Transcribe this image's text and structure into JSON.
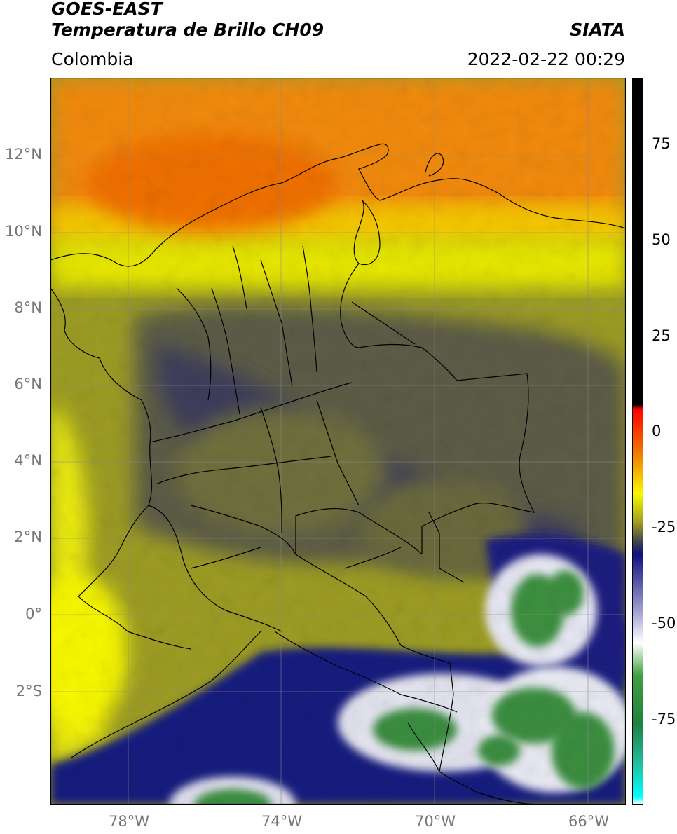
{
  "header": {
    "satellite": "GOES-EAST",
    "product": "Temperatura de Brillo CH09",
    "region": "Colombia",
    "brand": "SIATA",
    "timestamp": "2022-02-22 00:29"
  },
  "map": {
    "lat_labels": [
      "12°N",
      "10°N",
      "8°N",
      "6°N",
      "4°N",
      "2°N",
      "0°",
      "2°S"
    ],
    "lon_labels": [
      "78°W",
      "74°W",
      "70°W",
      "66°W"
    ],
    "gridlines": true,
    "colors": {
      "warm_orange": "#f28a0c",
      "yellow": "#f0f000",
      "olive": "#9a9a22",
      "gray_olive": "#565647",
      "navy": "#1a1a80",
      "white": "#ffffff",
      "green": "#3a9040",
      "border": "#000000"
    }
  },
  "colorbar": {
    "ticks": [
      "75",
      "50",
      "25",
      "0",
      "-25",
      "-50",
      "-75"
    ],
    "stops": [
      {
        "value": 90,
        "color": "#000000"
      },
      {
        "value": 9,
        "color": "#000000"
      },
      {
        "value": 8,
        "color": "#ff0000"
      },
      {
        "value": -3,
        "color": "#f07a00"
      },
      {
        "value": -13,
        "color": "#f8f800"
      },
      {
        "value": -20,
        "color": "#a0a020"
      },
      {
        "value": -25,
        "color": "#404050"
      },
      {
        "value": -28,
        "color": "#101080"
      },
      {
        "value": -42,
        "color": "#a0a0d0"
      },
      {
        "value": -50,
        "color": "#ffffff"
      },
      {
        "value": -58,
        "color": "#40a040"
      },
      {
        "value": -70,
        "color": "#208040"
      },
      {
        "value": -80,
        "color": "#20c0a0"
      },
      {
        "value": -88,
        "color": "#00ffff"
      },
      {
        "value": -90,
        "color": "#ffffff"
      }
    ]
  }
}
